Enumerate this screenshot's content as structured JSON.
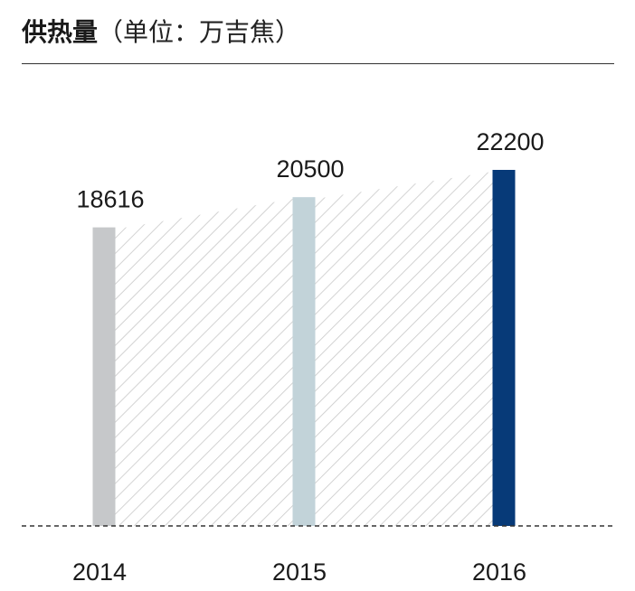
{
  "header": {
    "title": "供热量",
    "unit": "（单位：万吉焦）"
  },
  "chart_data": {
    "type": "bar",
    "title": "供热量（单位：万吉焦）",
    "categories": [
      "2014",
      "2015",
      "2016"
    ],
    "values": [
      18616,
      20500,
      22200
    ],
    "ylim": [
      0,
      22200
    ],
    "grid": false,
    "legend": "none",
    "colors": [
      "#c6c8ca",
      "#c2d3d9",
      "#073a78"
    ],
    "area_pattern": "diagonal-hatch",
    "hatch_color": "#c8c8c8"
  }
}
